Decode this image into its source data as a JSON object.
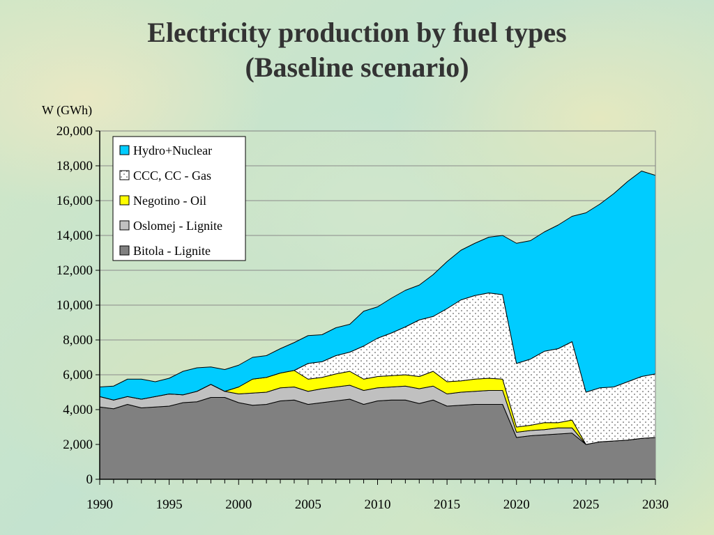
{
  "title_line1": "Electricity production by fuel types",
  "title_line2": "(Baseline scenario)",
  "chart_data": {
    "type": "area",
    "stacked": true,
    "title": "Electricity production by fuel types (Baseline scenario)",
    "ylabel": "W (GWh)",
    "xlabel": "",
    "ylim": [
      0,
      20000
    ],
    "xlim": [
      1990,
      2030
    ],
    "yticks": [
      0,
      2000,
      4000,
      6000,
      8000,
      10000,
      12000,
      14000,
      16000,
      18000,
      20000
    ],
    "ytick_labels": [
      "0",
      "2,000",
      "4,000",
      "6,000",
      "8,000",
      "10,000",
      "12,000",
      "14,000",
      "16,000",
      "18,000",
      "20,000"
    ],
    "xtick_labels": [
      "1990",
      "1995",
      "2000",
      "2005",
      "2010",
      "2015",
      "2020",
      "2025",
      "2030"
    ],
    "grid": "horizontal",
    "legend_position": "top-left",
    "x": [
      1990,
      1991,
      1992,
      1993,
      1994,
      1995,
      1996,
      1997,
      1998,
      1999,
      2000,
      2001,
      2002,
      2003,
      2004,
      2005,
      2006,
      2007,
      2008,
      2009,
      2010,
      2011,
      2012,
      2013,
      2014,
      2015,
      2016,
      2017,
      2018,
      2019,
      2020,
      2021,
      2022,
      2023,
      2024,
      2025,
      2026,
      2027,
      2028,
      2029,
      2030
    ],
    "series": [
      {
        "name": "Bitola - Lignite",
        "color": "#808080",
        "pattern": "solid",
        "values": [
          4150,
          4050,
          4300,
          4100,
          4150,
          4200,
          4400,
          4450,
          4700,
          4700,
          4400,
          4250,
          4300,
          4500,
          4550,
          4300,
          4400,
          4500,
          4600,
          4300,
          4500,
          4550,
          4550,
          4350,
          4550,
          4200,
          4250,
          4300,
          4300,
          4300,
          2400,
          2500,
          2550,
          2600,
          2650,
          2000,
          2150,
          2200,
          2250,
          2350,
          2400
        ]
      },
      {
        "name": "Oslomej - Lignite",
        "color": "#c0c0c0",
        "pattern": "solid",
        "values": [
          600,
          500,
          450,
          500,
          600,
          700,
          450,
          600,
          750,
          350,
          500,
          700,
          700,
          750,
          750,
          750,
          800,
          800,
          800,
          800,
          750,
          750,
          800,
          850,
          800,
          700,
          750,
          750,
          800,
          800,
          300,
          300,
          300,
          350,
          300,
          0,
          0,
          0,
          0,
          0,
          0
        ]
      },
      {
        "name": "Negotino - Oil",
        "color": "#ffff00",
        "pattern": "solid",
        "values": [
          0,
          0,
          0,
          0,
          0,
          0,
          0,
          0,
          0,
          0,
          400,
          800,
          850,
          850,
          950,
          700,
          650,
          750,
          800,
          650,
          650,
          650,
          650,
          700,
          850,
          700,
          650,
          700,
          700,
          650,
          300,
          300,
          400,
          300,
          450,
          0,
          0,
          0,
          0,
          0,
          0
        ]
      },
      {
        "name": "CCC, CC - Gas",
        "color": "#ffffff",
        "pattern": "dots",
        "values": [
          0,
          0,
          0,
          0,
          0,
          0,
          0,
          0,
          0,
          0,
          0,
          0,
          0,
          0,
          0,
          900,
          900,
          1050,
          1100,
          1900,
          2200,
          2450,
          2750,
          3250,
          3150,
          4200,
          4650,
          4800,
          4900,
          4850,
          3650,
          3800,
          4100,
          4250,
          4500,
          3000,
          3100,
          3100,
          3350,
          3550,
          3650
        ]
      },
      {
        "name": "Hydro+Nuclear",
        "color": "#00ccff",
        "pattern": "solid",
        "values": [
          550,
          800,
          1000,
          1150,
          850,
          900,
          1350,
          1350,
          1000,
          1250,
          1250,
          1250,
          1250,
          1400,
          1600,
          1600,
          1550,
          1600,
          1600,
          2000,
          1800,
          2000,
          2100,
          2000,
          2400,
          2700,
          2850,
          3000,
          3200,
          3400,
          6900,
          6800,
          6850,
          7100,
          7200,
          10300,
          10550,
          11100,
          11500,
          11800,
          11400
        ]
      }
    ]
  }
}
